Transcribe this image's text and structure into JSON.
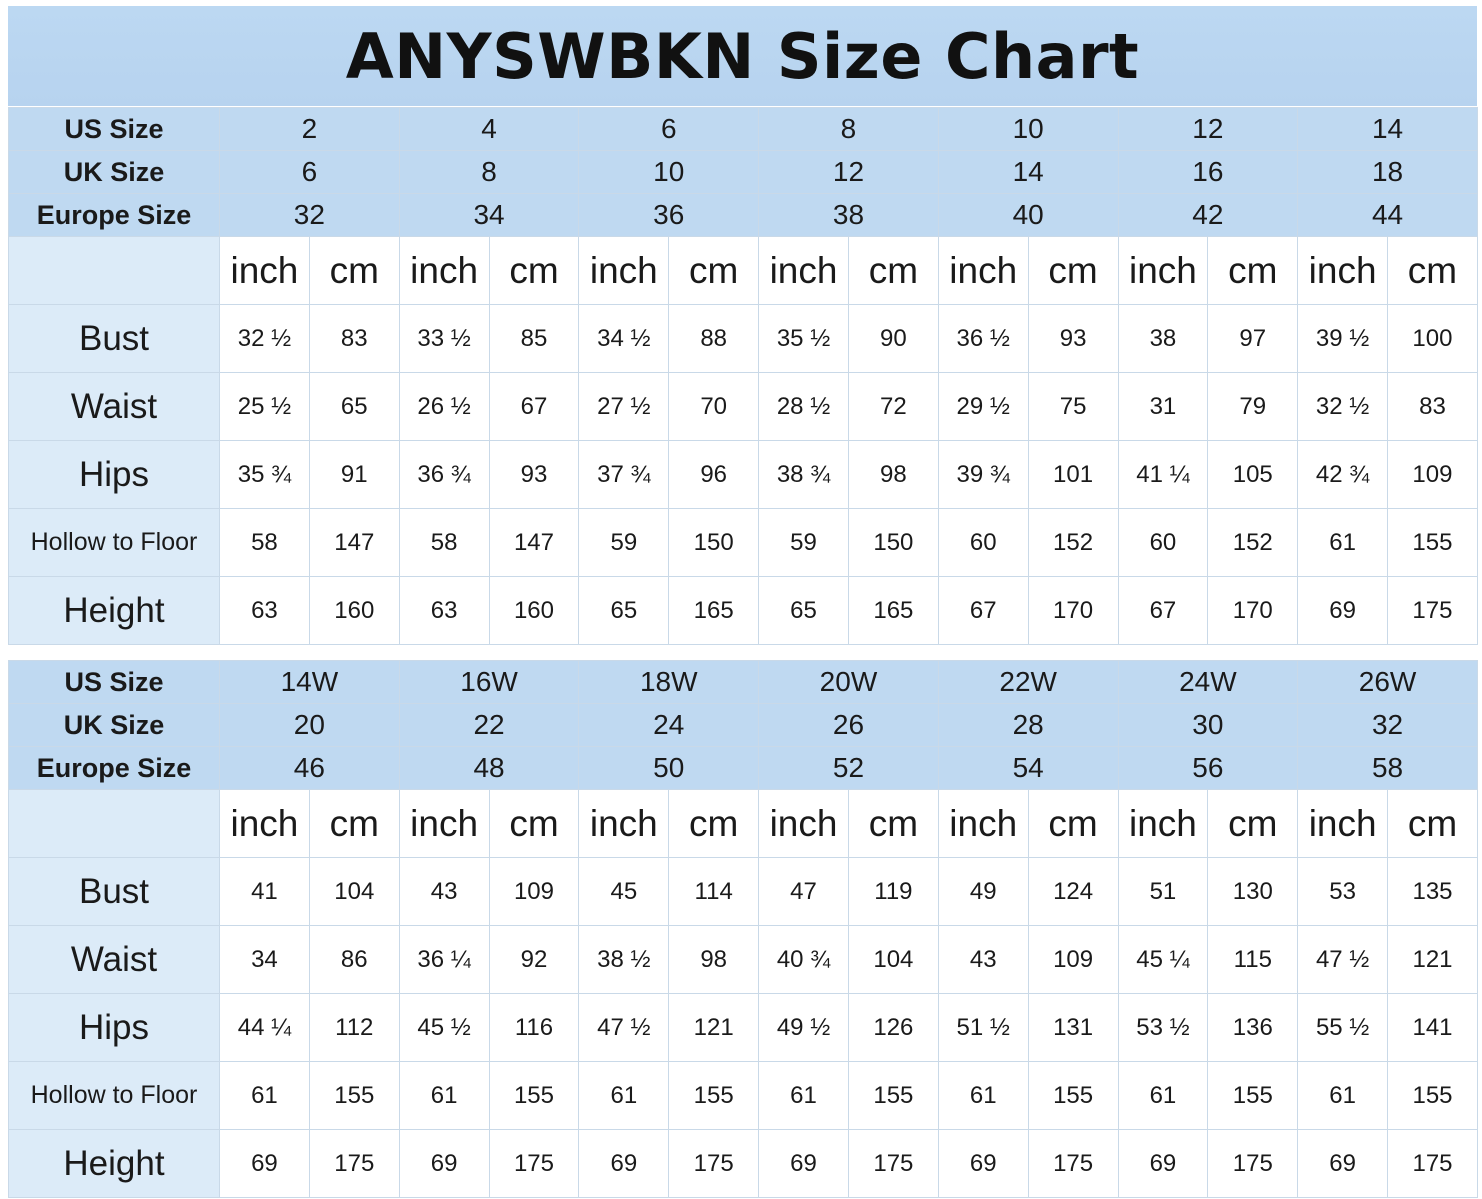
{
  "title": "ANYSWBKN Size Chart",
  "size_labels": {
    "us": "US Size",
    "uk": "UK Size",
    "europe": "Europe Size"
  },
  "units": {
    "inch": "inch",
    "cm": "cm"
  },
  "measurement_labels": [
    "Bust",
    "Waist",
    "Hips",
    "Hollow to Floor",
    "Height"
  ],
  "tables": [
    {
      "us_sizes": [
        "2",
        "4",
        "6",
        "8",
        "10",
        "12",
        "14"
      ],
      "uk_sizes": [
        "6",
        "8",
        "10",
        "12",
        "14",
        "16",
        "18"
      ],
      "europe_sizes": [
        "32",
        "34",
        "36",
        "38",
        "40",
        "42",
        "44"
      ],
      "measurements": [
        [
          "32 ½",
          "83",
          "33 ½",
          "85",
          "34 ½",
          "88",
          "35 ½",
          "90",
          "36 ½",
          "93",
          "38",
          "97",
          "39 ½",
          "100"
        ],
        [
          "25 ½",
          "65",
          "26 ½",
          "67",
          "27 ½",
          "70",
          "28 ½",
          "72",
          "29 ½",
          "75",
          "31",
          "79",
          "32 ½",
          "83"
        ],
        [
          "35 ¾",
          "91",
          "36 ¾",
          "93",
          "37 ¾",
          "96",
          "38 ¾",
          "98",
          "39 ¾",
          "101",
          "41 ¼",
          "105",
          "42 ¾",
          "109"
        ],
        [
          "58",
          "147",
          "58",
          "147",
          "59",
          "150",
          "59",
          "150",
          "60",
          "152",
          "60",
          "152",
          "61",
          "155"
        ],
        [
          "63",
          "160",
          "63",
          "160",
          "65",
          "165",
          "65",
          "165",
          "67",
          "170",
          "67",
          "170",
          "69",
          "175"
        ]
      ]
    },
    {
      "us_sizes": [
        "14W",
        "16W",
        "18W",
        "20W",
        "22W",
        "24W",
        "26W"
      ],
      "uk_sizes": [
        "20",
        "22",
        "24",
        "26",
        "28",
        "30",
        "32"
      ],
      "europe_sizes": [
        "46",
        "48",
        "50",
        "52",
        "54",
        "56",
        "58"
      ],
      "measurements": [
        [
          "41",
          "104",
          "43",
          "109",
          "45",
          "114",
          "47",
          "119",
          "49",
          "124",
          "51",
          "130",
          "53",
          "135"
        ],
        [
          "34",
          "86",
          "36 ¼",
          "92",
          "38 ½",
          "98",
          "40 ¾",
          "104",
          "43",
          "109",
          "45 ¼",
          "115",
          "47 ½",
          "121"
        ],
        [
          "44 ¼",
          "112",
          "45 ½",
          "116",
          "47 ½",
          "121",
          "49 ½",
          "126",
          "51 ½",
          "131",
          "53 ½",
          "136",
          "55 ½",
          "141"
        ],
        [
          "61",
          "155",
          "61",
          "155",
          "61",
          "155",
          "61",
          "155",
          "61",
          "155",
          "61",
          "155",
          "61",
          "155"
        ],
        [
          "69",
          "175",
          "69",
          "175",
          "69",
          "175",
          "69",
          "175",
          "69",
          "175",
          "69",
          "175",
          "69",
          "175"
        ]
      ]
    }
  ],
  "colors": {
    "header_blue": "#bfd9f1",
    "label_blue": "#dcebf8",
    "grid_line": "#c9d9e8",
    "cell_white": "#ffffff"
  }
}
